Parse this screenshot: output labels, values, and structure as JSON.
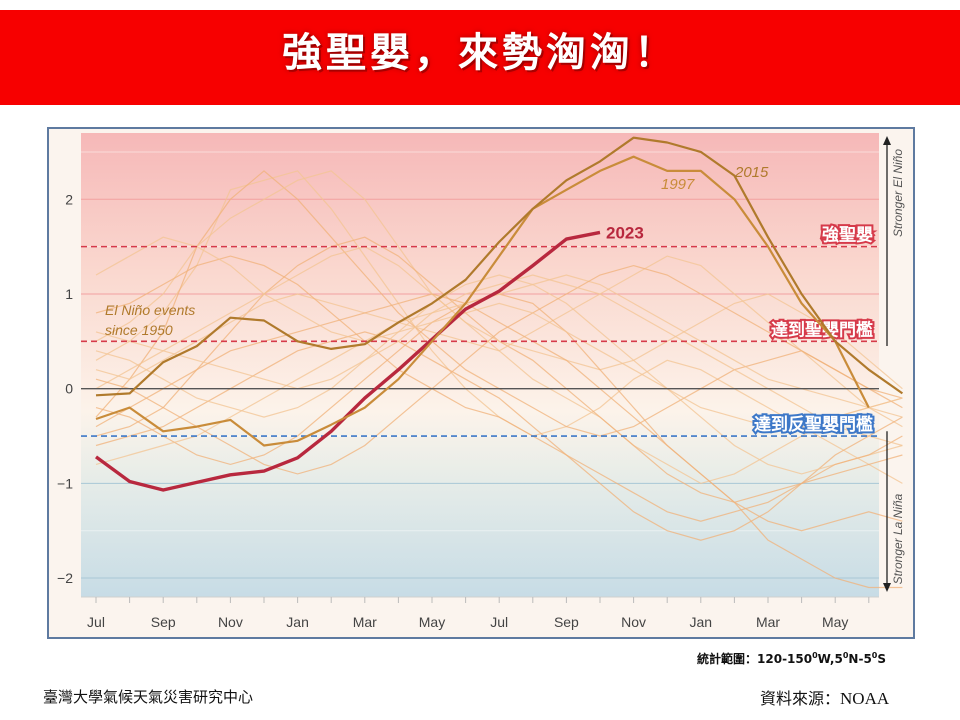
{
  "header": {
    "title": "強聖嬰，來勢洶洶！"
  },
  "chart_data": {
    "type": "line",
    "title": "",
    "xlabel": "",
    "ylabel": "",
    "x_tick_labels": [
      "Jul",
      "Sep",
      "Nov",
      "Jan",
      "Mar",
      "May",
      "Jul",
      "Sep",
      "Nov",
      "Jan",
      "Mar",
      "May"
    ],
    "ylim": [
      -2.2,
      2.7
    ],
    "y_ticks": [
      -2,
      -1,
      0,
      1,
      2
    ],
    "y_tick_labels": [
      "−2",
      "−1",
      "0",
      "1",
      "2"
    ],
    "side_labels": {
      "top": "Stronger El Niño",
      "bottom": "Stronger La Niña"
    },
    "annotation_events": "El Niño events\nsince 1950",
    "thresholds": [
      {
        "value": 1.5,
        "label": "強聖嬰",
        "color": "#d63a4a"
      },
      {
        "value": 0.5,
        "label": "達到聖嬰門檻",
        "color": "#d63a4a"
      },
      {
        "value": -0.5,
        "label": "達到反聖嬰門檻",
        "color": "#3d78c8"
      }
    ],
    "series": [
      {
        "name": "2023",
        "color": "#b8283e",
        "values": [
          -0.72,
          -0.98,
          -1.07,
          -0.99,
          -0.91,
          -0.87,
          -0.73,
          -0.45,
          -0.1,
          0.2,
          0.52,
          0.84,
          1.03,
          1.3,
          1.58,
          1.65
        ]
      },
      {
        "name": "1997",
        "color": "#c98c3a",
        "values": [
          -0.32,
          -0.2,
          -0.45,
          -0.4,
          -0.33,
          -0.6,
          -0.55,
          -0.38,
          -0.2,
          0.1,
          0.5,
          0.9,
          1.4,
          1.9,
          2.1,
          2.3,
          2.45,
          2.3,
          2.3,
          2.0,
          1.5,
          0.9,
          0.5,
          -0.2
        ]
      },
      {
        "name": "2015",
        "color": "#b07a2c",
        "values": [
          -0.07,
          -0.05,
          0.28,
          0.45,
          0.75,
          0.72,
          0.5,
          0.42,
          0.47,
          0.7,
          0.9,
          1.15,
          1.55,
          1.9,
          2.2,
          2.4,
          2.65,
          2.6,
          2.5,
          2.25,
          1.6,
          1.0,
          0.5,
          0.2,
          -0.05
        ]
      }
    ],
    "background_series": [
      [
        0.3,
        0.5,
        0.8,
        1.3,
        2.1,
        2.2,
        2.3,
        1.9,
        1.4,
        0.9,
        0.4,
        0.0,
        -0.3,
        -0.5,
        -0.4,
        -0.2,
        0.1,
        0.3,
        0.2,
        0.0,
        -0.2,
        -0.4,
        -0.6,
        -0.8,
        -1.0
      ],
      [
        -0.3,
        0.1,
        0.6,
        1.5,
        2.0,
        2.3,
        2.0,
        1.6,
        1.2,
        0.8,
        0.5,
        0.2,
        0.0,
        -0.2,
        -0.4,
        -0.5,
        -0.4,
        -0.2,
        0.0,
        0.2,
        0.3,
        0.4,
        0.2,
        0.0,
        -0.1
      ],
      [
        0.5,
        0.7,
        1.0,
        1.5,
        1.8,
        2.0,
        2.2,
        2.3,
        2.0,
        1.5,
        1.0,
        0.7,
        0.4,
        0.1,
        -0.1,
        -0.3,
        -0.6,
        -0.8,
        -1.0,
        -0.9,
        -0.7,
        -0.5,
        -0.3,
        -0.2,
        -0.1
      ],
      [
        -0.5,
        -0.4,
        -0.2,
        0.2,
        0.6,
        1.0,
        1.3,
        1.5,
        1.6,
        1.4,
        1.1,
        0.8,
        0.5,
        0.3,
        0.0,
        -0.3,
        -0.6,
        -0.9,
        -1.1,
        -1.2,
        -1.1,
        -1.0,
        -0.9,
        -0.8,
        -0.7
      ],
      [
        0.2,
        0.1,
        0.3,
        0.5,
        0.7,
        0.9,
        1.0,
        0.9,
        0.8,
        0.7,
        0.6,
        0.5,
        0.4,
        0.6,
        0.8,
        1.0,
        1.2,
        1.4,
        1.3,
        1.0,
        0.7,
        0.4,
        0.1,
        -0.2,
        -0.4
      ],
      [
        -0.6,
        -0.5,
        -0.4,
        -0.2,
        0.0,
        0.2,
        0.4,
        0.5,
        0.6,
        0.5,
        0.3,
        0.1,
        -0.1,
        -0.4,
        -0.7,
        -1.0,
        -1.3,
        -1.5,
        -1.6,
        -1.5,
        -1.3,
        -1.0,
        -0.7,
        -0.5,
        -0.3
      ],
      [
        0.0,
        0.2,
        0.4,
        0.6,
        0.8,
        1.0,
        1.2,
        1.4,
        1.5,
        1.3,
        1.0,
        0.7,
        0.5,
        0.4,
        0.3,
        0.2,
        0.3,
        0.5,
        0.7,
        0.9,
        1.0,
        0.8,
        0.6,
        0.3,
        0.0
      ],
      [
        -0.2,
        -0.3,
        -0.5,
        -0.7,
        -0.8,
        -0.7,
        -0.5,
        -0.2,
        0.1,
        0.4,
        0.7,
        0.9,
        1.0,
        0.9,
        0.6,
        0.2,
        -0.2,
        -0.6,
        -0.9,
        -1.2,
        -1.4,
        -1.5,
        -1.4,
        -1.3,
        -1.4
      ],
      [
        0.4,
        0.3,
        0.1,
        -0.1,
        -0.2,
        -0.3,
        -0.2,
        0.0,
        0.3,
        0.6,
        0.9,
        1.1,
        1.2,
        1.1,
        0.9,
        0.6,
        0.3,
        0.0,
        -0.3,
        -0.6,
        -0.8,
        -0.9,
        -0.8,
        -0.7,
        -0.6
      ],
      [
        0.8,
        0.9,
        1.1,
        1.3,
        1.4,
        1.3,
        1.1,
        0.8,
        0.5,
        0.2,
        0.0,
        -0.2,
        -0.3,
        -0.5,
        -0.7,
        -0.9,
        -1.1,
        -1.3,
        -1.4,
        -1.3,
        -1.2,
        -1.0,
        -0.8,
        -0.7,
        -0.5
      ],
      [
        -0.8,
        -0.7,
        -0.6,
        -0.5,
        -0.3,
        -0.1,
        0.1,
        0.3,
        0.5,
        0.7,
        0.8,
        0.9,
        1.0,
        1.1,
        1.2,
        1.1,
        0.9,
        0.7,
        0.5,
        0.3,
        0.1,
        0.0,
        -0.1,
        -0.2,
        -0.3
      ],
      [
        0.1,
        0.0,
        -0.2,
        -0.4,
        -0.6,
        -0.8,
        -0.9,
        -0.8,
        -0.6,
        -0.3,
        0.0,
        0.3,
        0.6,
        0.8,
        1.0,
        1.2,
        1.3,
        1.2,
        1.0,
        0.8,
        0.6,
        0.4,
        0.2,
        0.0,
        -0.2
      ],
      [
        0.6,
        0.5,
        0.4,
        0.3,
        0.2,
        0.1,
        0.0,
        0.1,
        0.3,
        0.5,
        0.8,
        1.0,
        1.1,
        1.2,
        1.1,
        1.0,
        0.8,
        0.6,
        0.4,
        0.2,
        0.0,
        -0.2,
        -0.4,
        -0.5,
        -0.6
      ],
      [
        -0.4,
        -0.2,
        0.0,
        0.2,
        0.4,
        0.5,
        0.6,
        0.7,
        0.8,
        0.9,
        1.0,
        0.9,
        0.7,
        0.5,
        0.3,
        0.0,
        -0.3,
        -0.6,
        -0.9,
        -1.2,
        -1.6,
        -1.8,
        -2.0,
        -2.1,
        -2.1
      ],
      [
        1.2,
        1.4,
        1.6,
        1.5,
        1.3,
        1.0,
        0.8,
        0.6,
        0.5,
        0.6,
        0.7,
        0.8,
        0.9,
        0.8,
        0.6,
        0.4,
        0.2,
        0.0,
        -0.2,
        -0.3,
        -0.4,
        -0.4,
        -0.3,
        -0.2,
        -0.1
      ]
    ]
  },
  "range_note": {
    "label": "統計範圍：",
    "value": "120-150",
    "sup1": "0",
    "w": "W,5",
    "sup2": "0",
    "ns": "N-5",
    "sup3": "0",
    "s": "S"
  },
  "footer": {
    "org": "臺灣大學氣候天氣災害研究中心",
    "source_label": "資料來源：",
    "source": "NOAA"
  }
}
